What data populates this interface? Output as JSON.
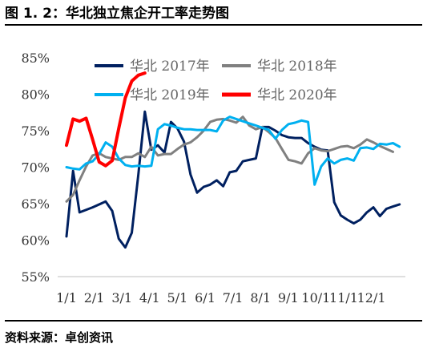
{
  "header": {
    "title": "图 1. 2：华北独立焦企开工率走势图"
  },
  "footer": {
    "source": "资料来源：卓创资讯"
  },
  "chart_data": {
    "type": "line",
    "x_tick_labels": [
      "1/1",
      "2/1",
      "3/1",
      "4/1",
      "5/1",
      "6/1",
      "7/1",
      "8/1",
      "9/1",
      "10/1",
      "11/1",
      "12/1"
    ],
    "y_tick_labels": [
      "55%",
      "60%",
      "65%",
      "70%",
      "75%",
      "80%",
      "85%"
    ],
    "ylim": [
      55,
      85
    ],
    "xlim": [
      0,
      52
    ],
    "x_unit": "week",
    "grid": false,
    "legend_position": "top",
    "series": [
      {
        "name": "华北 2017年",
        "color": "#002060",
        "width": 3,
        "x": [
          0,
          1,
          2,
          4,
          6,
          7,
          8,
          9,
          10,
          11,
          12,
          13,
          14,
          15,
          16,
          17,
          18,
          19,
          20,
          21,
          22,
          23,
          24,
          25,
          26,
          27,
          28,
          29,
          30,
          31,
          32,
          33,
          34,
          35,
          36,
          37,
          38,
          39,
          40,
          41,
          42,
          43,
          44,
          45,
          46,
          47,
          48,
          49,
          50,
          51
        ],
        "values": [
          60.5,
          69.5,
          63.8,
          64.5,
          65.3,
          64,
          60.2,
          59,
          61,
          69,
          77.6,
          72.4,
          73,
          72,
          76.2,
          75.3,
          73.5,
          69,
          66.5,
          67.3,
          67.6,
          68.2,
          67.4,
          69.3,
          69.5,
          70.8,
          71,
          71.2,
          75.5,
          75.5,
          75,
          74.4,
          74.1,
          74,
          74,
          73.3,
          72.8,
          72.4,
          72.3,
          65.2,
          63.4,
          62.8,
          62.3,
          62.8,
          63.8,
          64.5,
          63.3,
          64.3,
          64.6,
          64.9
        ]
      },
      {
        "name": "华北 2018年",
        "color": "#808080",
        "width": 3,
        "x": [
          0,
          1,
          2,
          3,
          4,
          5,
          6,
          7,
          8,
          9,
          10,
          11,
          12,
          13,
          14,
          15,
          16,
          17,
          18,
          19,
          20,
          21,
          22,
          23,
          24,
          25,
          26,
          27,
          28,
          29,
          30,
          31,
          32,
          33,
          34,
          35,
          36,
          37,
          38,
          39,
          40,
          41,
          42,
          43,
          44,
          45,
          46,
          47,
          48,
          49,
          50
        ],
        "values": [
          65.3,
          66.2,
          68.2,
          70.1,
          71.6,
          71.9,
          71.4,
          71.2,
          71,
          71.4,
          71.4,
          71.9,
          71.4,
          72.8,
          71.6,
          71.8,
          71.8,
          72.5,
          73.1,
          73.4,
          74.1,
          75,
          76.2,
          76.5,
          76.6,
          76.4,
          76.1,
          76.9,
          75.7,
          75.2,
          75.5,
          74.8,
          74,
          72.5,
          71,
          70.8,
          70.5,
          71.9,
          72.6,
          72.3,
          72.2,
          72.5,
          72.8,
          72.9,
          72.6,
          73.1,
          73.8,
          73.4,
          72.9,
          72.5,
          72.1
        ]
      },
      {
        "name": "华北 2019年",
        "color": "#00B0F0",
        "width": 3,
        "x": [
          0,
          1,
          2,
          3,
          4,
          5,
          6,
          7,
          8,
          9,
          10,
          11,
          12,
          13,
          14,
          15,
          16,
          17,
          18,
          19,
          20,
          21,
          22,
          23,
          24,
          25,
          26,
          27,
          28,
          29,
          30,
          31,
          32,
          33,
          34,
          35,
          36,
          37,
          38,
          39,
          40,
          41,
          42,
          43,
          44,
          45,
          46,
          47,
          48,
          49,
          50,
          51
        ],
        "values": [
          70,
          69.8,
          69.7,
          70.5,
          70.8,
          71.8,
          73.4,
          72.8,
          71.2,
          70.3,
          70.1,
          70.2,
          70.1,
          70.2,
          75.2,
          75.9,
          75.7,
          75.4,
          75.2,
          75.2,
          75.1,
          75.1,
          75.1,
          74.9,
          76.4,
          76.9,
          76.6,
          76.3,
          76,
          75.7,
          75.4,
          75.1,
          73.9,
          75.1,
          75.9,
          76.1,
          76.4,
          76.2,
          67.6,
          70.1,
          71.2,
          70.5,
          71,
          71.2,
          70.9,
          72.6,
          72.7,
          72.5,
          73.2,
          73.1,
          73.3,
          72.8
        ]
      },
      {
        "name": "华北 2020年",
        "color": "#FF0000",
        "width": 4,
        "x": [
          0,
          1,
          2,
          3,
          4,
          5,
          6,
          7,
          8,
          9,
          10,
          11,
          12
        ],
        "values": [
          73,
          76.6,
          76.3,
          76.7,
          73.8,
          70.7,
          70.2,
          70.9,
          75.3,
          79.5,
          81.8,
          82.6,
          82.9
        ]
      }
    ]
  }
}
